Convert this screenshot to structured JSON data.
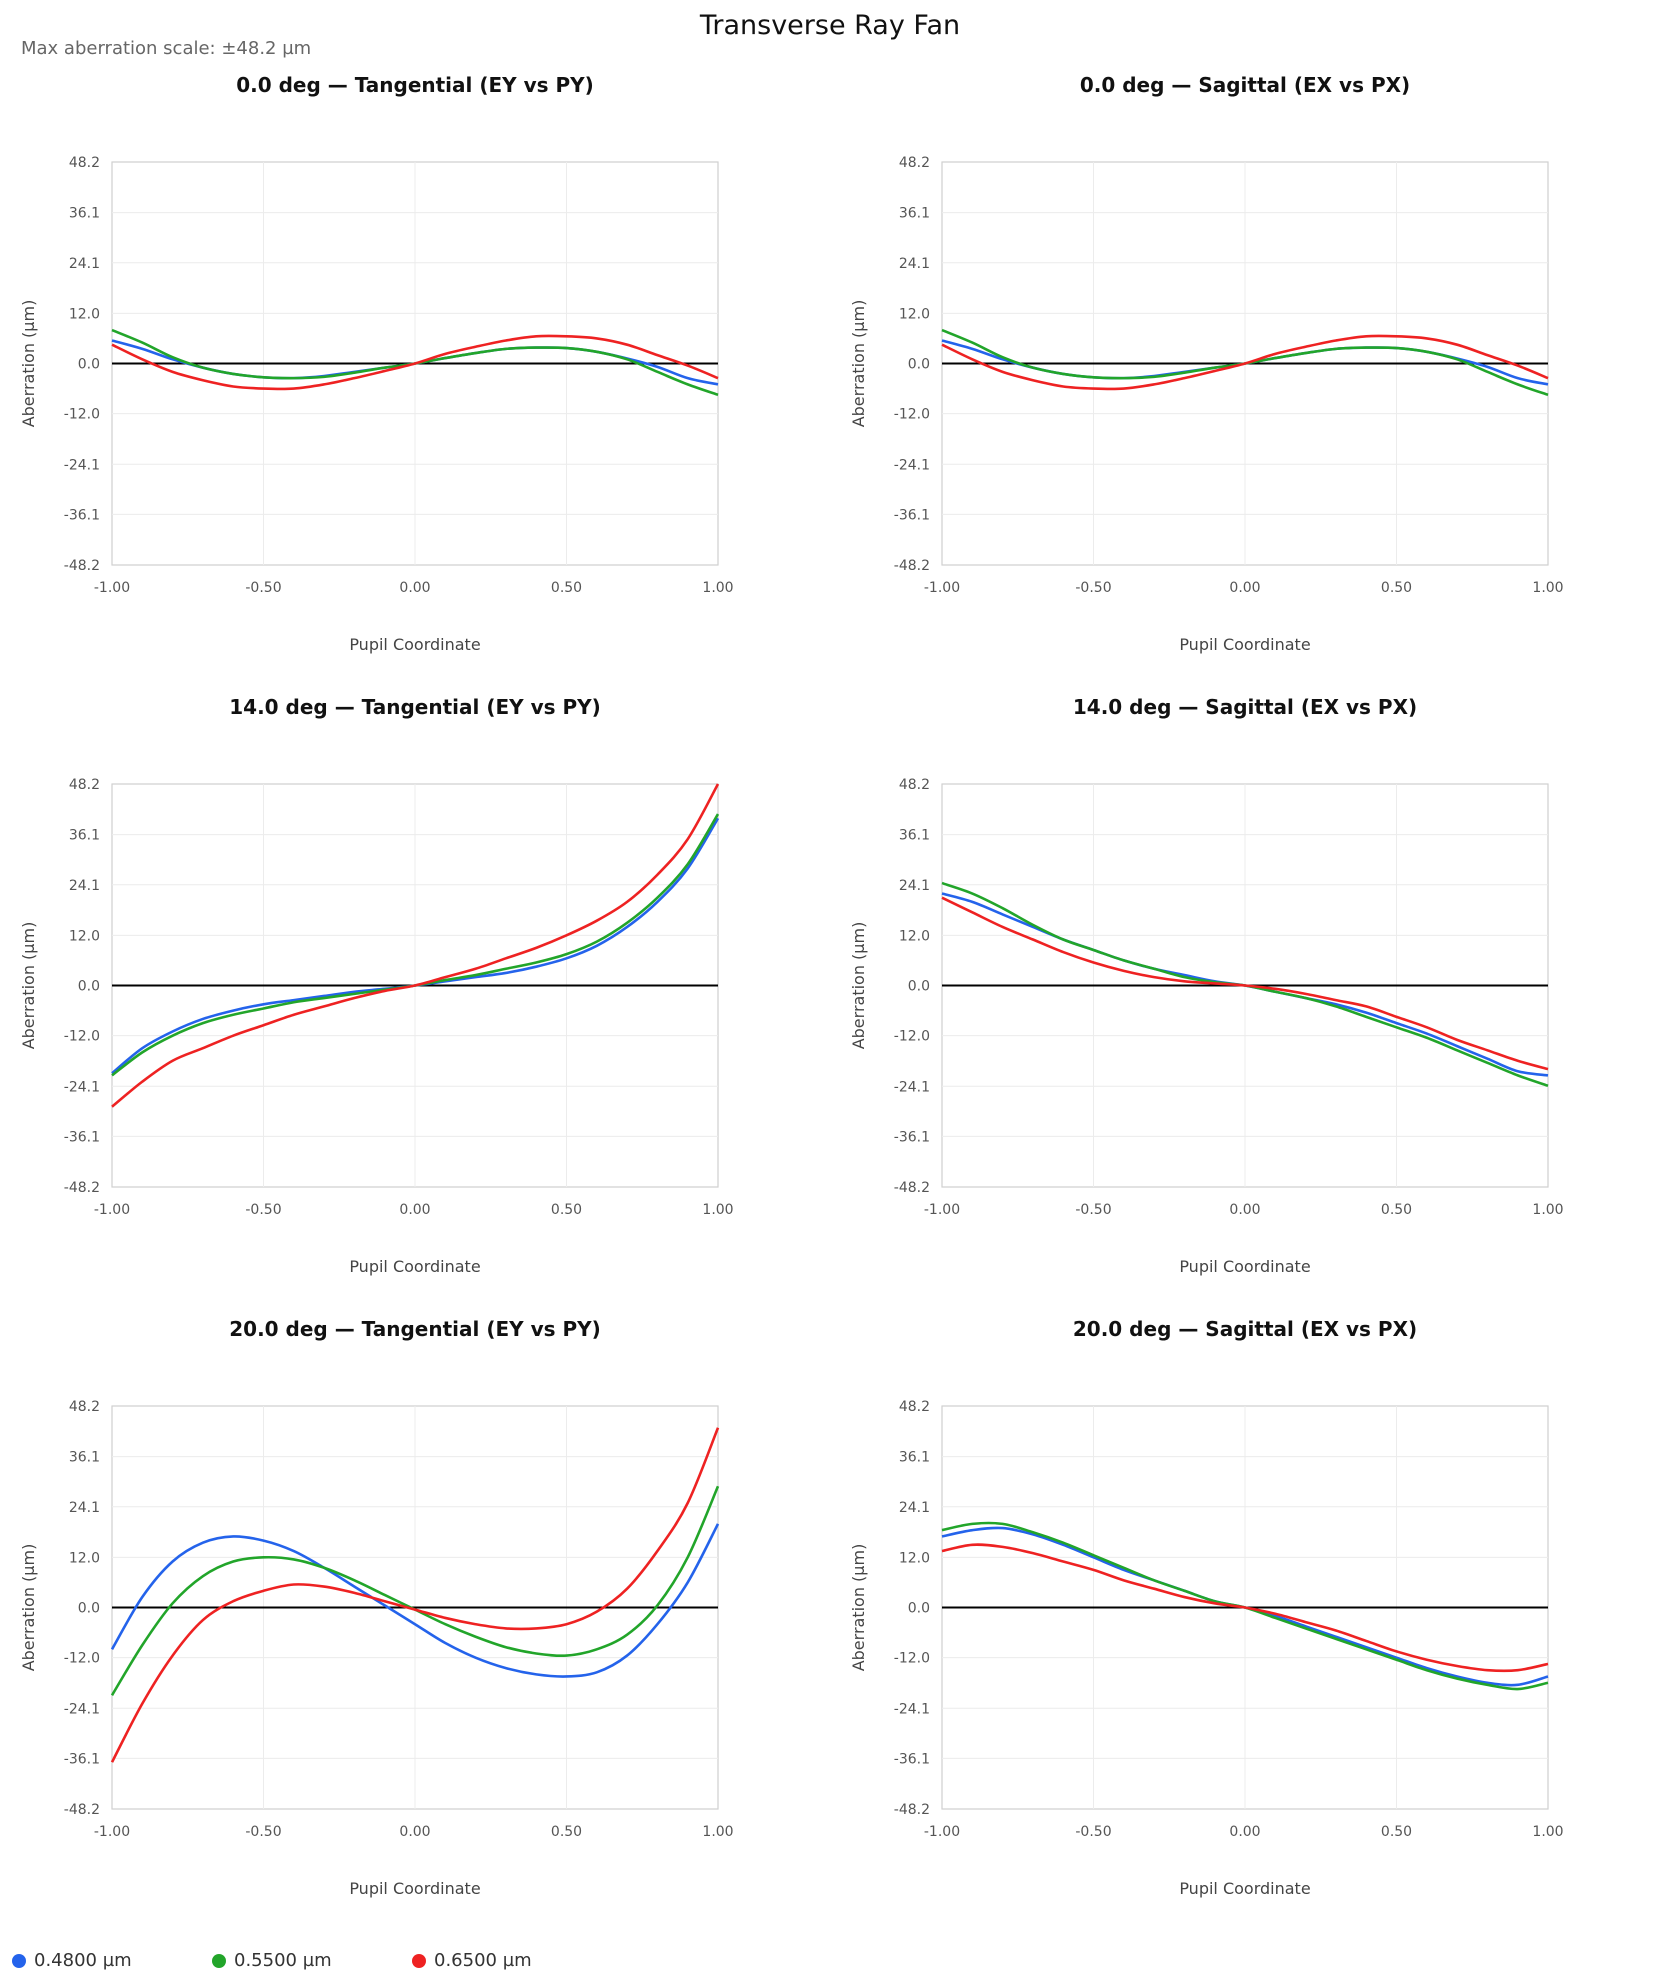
{
  "title": "Transverse Ray Fan",
  "scale_note": "Max aberration scale: ±48.2 µm",
  "colors": {
    "blue": "#2463eb",
    "green": "#22a52a",
    "red": "#ee2222"
  },
  "legend": [
    {
      "label": "0.4800 µm",
      "color": "#2463eb"
    },
    {
      "label": "0.5500 µm",
      "color": "#22a52a"
    },
    {
      "label": "0.6500 µm",
      "color": "#ee2222"
    }
  ],
  "chart_data": [
    {
      "type": "line",
      "title": "0.0 deg — Tangential (EY vs PY)",
      "xlabel": "Pupil Coordinate",
      "ylabel": "Aberration (µm)",
      "xlim": [
        -1,
        1
      ],
      "ylim": [
        -48.2,
        48.2
      ],
      "xticks": [
        "-1.00",
        "-0.50",
        "0.00",
        "0.50",
        "1.00"
      ],
      "yticks": [
        "48.2",
        "36.1",
        "24.1",
        "12.0",
        "0.0",
        "-12.0",
        "-24.1",
        "-36.1",
        "-48.2"
      ],
      "grid": true,
      "x": [
        -1.0,
        -0.9,
        -0.8,
        -0.7,
        -0.6,
        -0.5,
        -0.4,
        -0.3,
        -0.2,
        -0.1,
        0.0,
        0.1,
        0.2,
        0.3,
        0.4,
        0.5,
        0.6,
        0.7,
        0.8,
        0.9,
        1.0
      ],
      "series": [
        {
          "name": "0.4800 µm",
          "values": [
            5.5,
            3.5,
            1.0,
            -1.0,
            -2.5,
            -3.3,
            -3.5,
            -3.0,
            -2.0,
            -1.0,
            0.0,
            1.3,
            2.5,
            3.5,
            3.8,
            3.7,
            2.8,
            1.2,
            -0.8,
            -3.5,
            -5.0
          ]
        },
        {
          "name": "0.5500 µm",
          "values": [
            8.0,
            5.0,
            1.5,
            -1.0,
            -2.5,
            -3.3,
            -3.5,
            -3.2,
            -2.2,
            -1.0,
            0.0,
            1.3,
            2.5,
            3.5,
            3.8,
            3.7,
            2.8,
            1.0,
            -2.0,
            -5.0,
            -7.5
          ]
        },
        {
          "name": "0.6500 µm",
          "values": [
            4.5,
            1.0,
            -2.0,
            -4.0,
            -5.5,
            -6.0,
            -6.0,
            -5.0,
            -3.5,
            -1.8,
            0.0,
            2.3,
            4.0,
            5.5,
            6.5,
            6.5,
            6.0,
            4.5,
            2.0,
            -0.5,
            -3.5
          ]
        }
      ]
    },
    {
      "type": "line",
      "title": "0.0 deg — Sagittal (EX vs PX)",
      "xlabel": "Pupil Coordinate",
      "ylabel": "Aberration (µm)",
      "xlim": [
        -1,
        1
      ],
      "ylim": [
        -48.2,
        48.2
      ],
      "xticks": [
        "-1.00",
        "-0.50",
        "0.00",
        "0.50",
        "1.00"
      ],
      "yticks": [
        "48.2",
        "36.1",
        "24.1",
        "12.0",
        "0.0",
        "-12.0",
        "-24.1",
        "-36.1",
        "-48.2"
      ],
      "grid": true,
      "x": [
        -1.0,
        -0.9,
        -0.8,
        -0.7,
        -0.6,
        -0.5,
        -0.4,
        -0.3,
        -0.2,
        -0.1,
        0.0,
        0.1,
        0.2,
        0.3,
        0.4,
        0.5,
        0.6,
        0.7,
        0.8,
        0.9,
        1.0
      ],
      "series": [
        {
          "name": "0.4800 µm",
          "values": [
            5.5,
            3.5,
            1.0,
            -1.0,
            -2.5,
            -3.3,
            -3.5,
            -3.0,
            -2.0,
            -1.0,
            0.0,
            1.3,
            2.5,
            3.5,
            3.8,
            3.7,
            2.8,
            1.2,
            -0.8,
            -3.5,
            -5.0
          ]
        },
        {
          "name": "0.5500 µm",
          "values": [
            8.0,
            5.0,
            1.5,
            -1.0,
            -2.5,
            -3.3,
            -3.5,
            -3.2,
            -2.2,
            -1.0,
            0.0,
            1.3,
            2.5,
            3.5,
            3.8,
            3.7,
            2.8,
            1.0,
            -2.0,
            -5.0,
            -7.5
          ]
        },
        {
          "name": "0.6500 µm",
          "values": [
            4.5,
            1.0,
            -2.0,
            -4.0,
            -5.5,
            -6.0,
            -6.0,
            -5.0,
            -3.5,
            -1.8,
            0.0,
            2.3,
            4.0,
            5.5,
            6.5,
            6.5,
            6.0,
            4.5,
            2.0,
            -0.5,
            -3.5
          ]
        }
      ]
    },
    {
      "type": "line",
      "title": "14.0 deg — Tangential (EY vs PY)",
      "xlabel": "Pupil Coordinate",
      "ylabel": "Aberration (µm)",
      "xlim": [
        -1,
        1
      ],
      "ylim": [
        -48.2,
        48.2
      ],
      "xticks": [
        "-1.00",
        "-0.50",
        "0.00",
        "0.50",
        "1.00"
      ],
      "yticks": [
        "48.2",
        "36.1",
        "24.1",
        "12.0",
        "0.0",
        "-12.0",
        "-24.1",
        "-36.1",
        "-48.2"
      ],
      "grid": true,
      "x": [
        -1.0,
        -0.9,
        -0.8,
        -0.7,
        -0.6,
        -0.5,
        -0.4,
        -0.3,
        -0.2,
        -0.1,
        0.0,
        0.1,
        0.2,
        0.3,
        0.4,
        0.5,
        0.6,
        0.7,
        0.8,
        0.9,
        1.0
      ],
      "series": [
        {
          "name": "0.4800 µm",
          "values": [
            -21.0,
            -15.0,
            -11.0,
            -8.0,
            -6.0,
            -4.5,
            -3.5,
            -2.5,
            -1.5,
            -0.8,
            0.0,
            1.0,
            2.0,
            3.0,
            4.5,
            6.5,
            9.5,
            14.0,
            20.0,
            28.0,
            40.0
          ]
        },
        {
          "name": "0.5500 µm",
          "values": [
            -21.5,
            -16.0,
            -12.0,
            -9.0,
            -7.0,
            -5.5,
            -4.0,
            -3.0,
            -2.0,
            -1.0,
            0.0,
            1.3,
            2.5,
            4.0,
            5.5,
            7.5,
            10.5,
            15.0,
            21.0,
            29.0,
            41.0
          ]
        },
        {
          "name": "0.6500 µm",
          "values": [
            -29.0,
            -23.0,
            -18.0,
            -15.0,
            -12.0,
            -9.5,
            -7.0,
            -5.0,
            -3.0,
            -1.3,
            0.0,
            2.0,
            4.0,
            6.5,
            9.0,
            12.0,
            15.5,
            20.0,
            26.5,
            35.0,
            48.2
          ]
        }
      ]
    },
    {
      "type": "line",
      "title": "14.0 deg — Sagittal (EX vs PX)",
      "xlabel": "Pupil Coordinate",
      "ylabel": "Aberration (µm)",
      "xlim": [
        -1,
        1
      ],
      "ylim": [
        -48.2,
        48.2
      ],
      "xticks": [
        "-1.00",
        "-0.50",
        "0.00",
        "0.50",
        "1.00"
      ],
      "yticks": [
        "48.2",
        "36.1",
        "24.1",
        "12.0",
        "0.0",
        "-12.0",
        "-24.1",
        "-36.1",
        "-48.2"
      ],
      "grid": true,
      "x": [
        -1.0,
        -0.9,
        -0.8,
        -0.7,
        -0.6,
        -0.5,
        -0.4,
        -0.3,
        -0.2,
        -0.1,
        0.0,
        0.1,
        0.2,
        0.3,
        0.4,
        0.5,
        0.6,
        0.7,
        0.8,
        0.9,
        1.0
      ],
      "series": [
        {
          "name": "0.4800 µm",
          "values": [
            22.0,
            20.0,
            17.0,
            14.0,
            11.0,
            8.5,
            6.0,
            4.0,
            2.5,
            1.0,
            0.0,
            -1.5,
            -3.0,
            -4.5,
            -6.5,
            -9.0,
            -11.5,
            -14.5,
            -17.5,
            -20.5,
            -21.5
          ]
        },
        {
          "name": "0.5500 µm",
          "values": [
            24.5,
            22.0,
            18.5,
            14.5,
            11.0,
            8.5,
            6.0,
            4.0,
            2.0,
            0.8,
            0.0,
            -1.5,
            -3.0,
            -5.0,
            -7.5,
            -10.0,
            -12.5,
            -15.5,
            -18.5,
            -21.5,
            -24.0
          ]
        },
        {
          "name": "0.6500 µm",
          "values": [
            21.0,
            17.5,
            14.0,
            11.0,
            8.0,
            5.5,
            3.5,
            2.0,
            1.0,
            0.5,
            0.0,
            -0.8,
            -2.0,
            -3.5,
            -5.0,
            -7.5,
            -10.0,
            -13.0,
            -15.5,
            -18.0,
            -20.0
          ]
        }
      ]
    },
    {
      "type": "line",
      "title": "20.0 deg — Tangential (EY vs PY)",
      "xlabel": "Pupil Coordinate",
      "ylabel": "Aberration (µm)",
      "xlim": [
        -1,
        1
      ],
      "ylim": [
        -48.2,
        48.2
      ],
      "xticks": [
        "-1.00",
        "-0.50",
        "0.00",
        "0.50",
        "1.00"
      ],
      "yticks": [
        "48.2",
        "36.1",
        "24.1",
        "12.0",
        "0.0",
        "-12.0",
        "-24.1",
        "-36.1",
        "-48.2"
      ],
      "grid": true,
      "x": [
        -1.0,
        -0.9,
        -0.8,
        -0.7,
        -0.6,
        -0.5,
        -0.4,
        -0.3,
        -0.2,
        -0.1,
        0.0,
        0.1,
        0.2,
        0.3,
        0.4,
        0.5,
        0.6,
        0.7,
        0.8,
        0.9,
        1.0
      ],
      "series": [
        {
          "name": "0.4800 µm",
          "values": [
            -10.0,
            2.5,
            11.0,
            15.5,
            17.0,
            16.0,
            13.5,
            9.5,
            5.0,
            0.5,
            -4.0,
            -8.5,
            -12.0,
            -14.5,
            -16.0,
            -16.5,
            -15.5,
            -11.5,
            -4.0,
            6.0,
            20.0
          ]
        },
        {
          "name": "0.5500 µm",
          "values": [
            -21.0,
            -9.0,
            1.0,
            7.5,
            11.0,
            12.0,
            11.5,
            9.5,
            6.5,
            3.0,
            -0.5,
            -4.0,
            -7.0,
            -9.5,
            -11.0,
            -11.5,
            -10.0,
            -6.5,
            0.5,
            12.0,
            29.0
          ]
        },
        {
          "name": "0.6500 µm",
          "values": [
            -37.0,
            -23.0,
            -11.5,
            -3.0,
            1.5,
            4.0,
            5.5,
            5.0,
            3.5,
            1.5,
            -0.5,
            -2.5,
            -4.0,
            -5.0,
            -5.0,
            -4.0,
            -1.0,
            4.5,
            13.5,
            25.0,
            43.0
          ]
        }
      ]
    },
    {
      "type": "line",
      "title": "20.0 deg — Sagittal (EX vs PX)",
      "xlabel": "Pupil Coordinate",
      "ylabel": "Aberration (µm)",
      "xlim": [
        -1,
        1
      ],
      "ylim": [
        -48.2,
        48.2
      ],
      "xticks": [
        "-1.00",
        "-0.50",
        "0.00",
        "0.50",
        "1.00"
      ],
      "yticks": [
        "48.2",
        "36.1",
        "24.1",
        "12.0",
        "0.0",
        "-12.0",
        "-24.1",
        "-36.1",
        "-48.2"
      ],
      "grid": true,
      "x": [
        -1.0,
        -0.9,
        -0.8,
        -0.7,
        -0.6,
        -0.5,
        -0.4,
        -0.3,
        -0.2,
        -0.1,
        0.0,
        0.1,
        0.2,
        0.3,
        0.4,
        0.5,
        0.6,
        0.7,
        0.8,
        0.9,
        1.0
      ],
      "series": [
        {
          "name": "0.4800 µm",
          "values": [
            17.0,
            18.5,
            19.0,
            17.5,
            15.0,
            12.0,
            9.0,
            6.5,
            4.0,
            1.5,
            0.0,
            -2.0,
            -4.5,
            -7.0,
            -9.5,
            -12.0,
            -14.5,
            -16.5,
            -18.0,
            -18.5,
            -16.5
          ]
        },
        {
          "name": "0.5500 µm",
          "values": [
            18.5,
            20.0,
            20.0,
            18.0,
            15.5,
            12.5,
            9.5,
            6.5,
            4.0,
            1.5,
            0.0,
            -2.5,
            -5.0,
            -7.5,
            -10.0,
            -12.5,
            -15.0,
            -17.0,
            -18.5,
            -19.5,
            -18.0
          ]
        },
        {
          "name": "0.6500 µm",
          "values": [
            13.5,
            15.0,
            14.5,
            13.0,
            11.0,
            9.0,
            6.5,
            4.5,
            2.5,
            1.0,
            0.0,
            -1.5,
            -3.5,
            -5.5,
            -8.0,
            -10.5,
            -12.5,
            -14.0,
            -15.0,
            -15.0,
            -13.5
          ]
        }
      ]
    }
  ]
}
